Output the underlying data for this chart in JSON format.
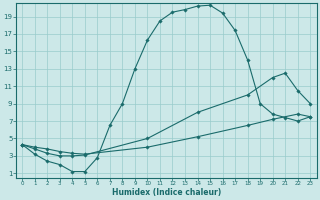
{
  "xlabel": "Humidex (Indice chaleur)",
  "background_color": "#cce8e8",
  "grid_color": "#99cccc",
  "line_color": "#1a6b6b",
  "xlim": [
    -0.5,
    23.5
  ],
  "ylim": [
    0.5,
    20.5
  ],
  "xticks": [
    0,
    1,
    2,
    3,
    4,
    5,
    6,
    7,
    8,
    9,
    10,
    11,
    12,
    13,
    14,
    15,
    16,
    17,
    18,
    19,
    20,
    21,
    22,
    23
  ],
  "yticks": [
    1,
    3,
    5,
    7,
    9,
    11,
    13,
    15,
    17,
    19
  ],
  "line1_x": [
    0,
    1,
    2,
    3,
    4,
    5,
    6,
    7,
    8,
    9,
    10,
    11,
    12,
    13,
    14,
    15,
    16,
    17,
    18,
    19,
    20,
    21,
    22,
    23
  ],
  "line1_y": [
    4.3,
    3.2,
    2.4,
    2.0,
    1.2,
    1.2,
    2.8,
    6.5,
    9.0,
    13.0,
    16.3,
    18.5,
    19.5,
    19.8,
    20.2,
    20.3,
    19.4,
    17.4,
    14.0,
    9.0,
    7.8,
    7.4,
    7.0,
    7.5
  ],
  "line2_x": [
    0,
    1,
    2,
    3,
    4,
    5,
    10,
    14,
    18,
    20,
    21,
    22,
    23
  ],
  "line2_y": [
    4.3,
    3.8,
    3.3,
    3.0,
    3.0,
    3.1,
    5.0,
    8.0,
    10.0,
    12.0,
    12.5,
    10.5,
    9.0
  ],
  "line3_x": [
    0,
    1,
    2,
    3,
    4,
    5,
    10,
    14,
    18,
    20,
    22,
    23
  ],
  "line3_y": [
    4.3,
    4.0,
    3.8,
    3.5,
    3.3,
    3.2,
    4.0,
    5.2,
    6.5,
    7.2,
    7.8,
    7.5
  ]
}
